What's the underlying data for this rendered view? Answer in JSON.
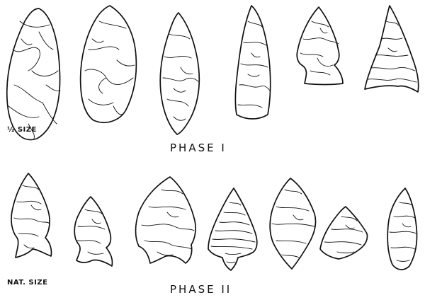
{
  "phase_1": {
    "title": "PHASE I",
    "scale": "½ SIZE",
    "artifacts": [
      {
        "name": "phase1-point-1",
        "label": "broad leaf-shaped biface"
      },
      {
        "name": "phase1-point-2",
        "label": "lanceolate point with ground edges"
      },
      {
        "name": "phase1-point-3",
        "label": "long leaf-shaped point"
      },
      {
        "name": "phase1-point-4",
        "label": "narrow lanceolate point"
      },
      {
        "name": "phase1-point-5",
        "label": "side-notched point"
      },
      {
        "name": "phase1-point-6",
        "label": "triangular point"
      }
    ]
  },
  "phase_2": {
    "title": "PHASE II",
    "scale": "NAT. SIZE",
    "artifacts": [
      {
        "name": "phase2-point-1",
        "label": "corner-notched point"
      },
      {
        "name": "phase2-point-2",
        "label": "small notched point"
      },
      {
        "name": "phase2-point-3",
        "label": "broad corner-notched point"
      },
      {
        "name": "phase2-point-4",
        "label": "finely flaked stemmed point"
      },
      {
        "name": "phase2-point-5",
        "label": "diamond-shaped point"
      },
      {
        "name": "phase2-point-6",
        "label": "short diamond-shaped point"
      },
      {
        "name": "phase2-point-7",
        "label": "small narrow point"
      }
    ]
  },
  "colors": {
    "ink": "#111111",
    "paper": "#ffffff"
  }
}
